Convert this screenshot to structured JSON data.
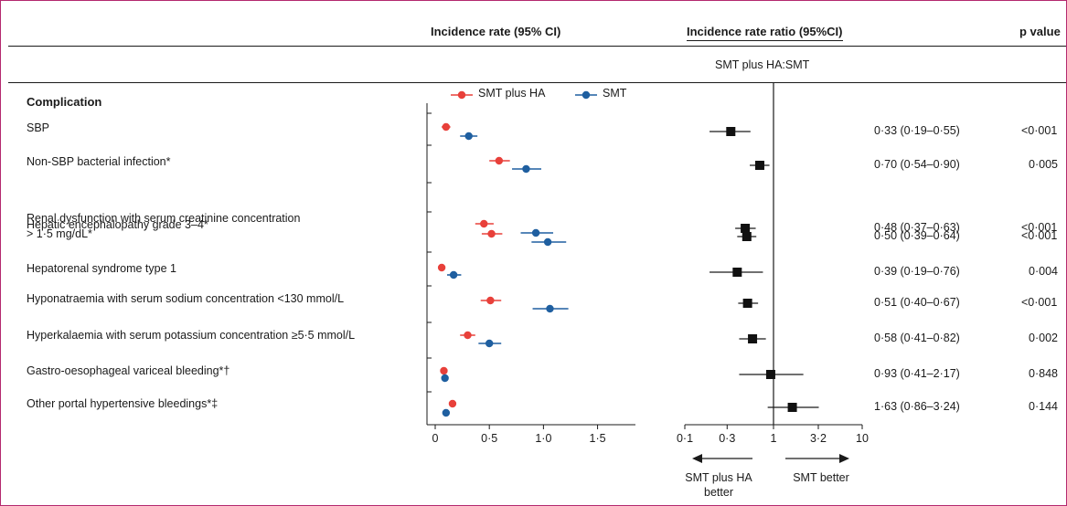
{
  "headers": {
    "incidence": "Incidence rate (95% CI)",
    "irr": "Incidence rate ratio (95%CI)",
    "irr_sub": "SMT plus HA:SMT",
    "p": "p value"
  },
  "column_label": "Complication",
  "legend": [
    {
      "label": "SMT plus HA",
      "color": "#e8403a"
    },
    {
      "label": "SMT",
      "color": "#1f5fa0"
    }
  ],
  "direction_labels": {
    "left": "SMT plus HA better",
    "right": "SMT better"
  },
  "chart_data": [
    {
      "type": "scatter",
      "title": "Incidence rate (95% CI)",
      "xlim": [
        0,
        1.85
      ],
      "xticks": [
        {
          "v": 0,
          "label": "0"
        },
        {
          "v": 0.5,
          "label": "0·5"
        },
        {
          "v": 1.0,
          "label": "1·0"
        },
        {
          "v": 1.5,
          "label": "1·5"
        }
      ],
      "series": [
        {
          "name": "SMT plus HA",
          "color": "#e8403a",
          "points": [
            {
              "row": "SBP",
              "value": 0.1,
              "lo": 0.06,
              "hi": 0.14
            },
            {
              "row": "Non-SBP bacterial infection*",
              "value": 0.59,
              "lo": 0.5,
              "hi": 0.69
            },
            {
              "row": "Hepatic encephalopathy grade 3–4*",
              "value": 0.45,
              "lo": 0.37,
              "hi": 0.54
            },
            {
              "row": "Renal dysfunction with serum creatinine concentration > 1·5 mg/dL*",
              "value": 0.52,
              "lo": 0.43,
              "hi": 0.62
            },
            {
              "row": "Hepatorenal syndrome type 1",
              "value": 0.06,
              "lo": 0.03,
              "hi": 0.09
            },
            {
              "row": "Hyponatraemia with serum sodium concentration <130 mmol/L",
              "value": 0.51,
              "lo": 0.42,
              "hi": 0.61
            },
            {
              "row": "Hyperkalaemia with serum potassium concentration ≥5·5 mmol/L",
              "value": 0.3,
              "lo": 0.23,
              "hi": 0.37
            },
            {
              "row": "Gastro-oesophageal variceal bleeding*†",
              "value": 0.08,
              "lo": 0.05,
              "hi": 0.11
            },
            {
              "row": "Other portal hypertensive bleedings*‡",
              "value": 0.16,
              "lo": 0.13,
              "hi": 0.19
            }
          ]
        },
        {
          "name": "SMT",
          "color": "#1f5fa0",
          "points": [
            {
              "row": "SBP",
              "value": 0.31,
              "lo": 0.23,
              "hi": 0.39
            },
            {
              "row": "Non-SBP bacterial infection*",
              "value": 0.84,
              "lo": 0.71,
              "hi": 0.98
            },
            {
              "row": "Hepatic encephalopathy grade 3–4*",
              "value": 0.93,
              "lo": 0.79,
              "hi": 1.09
            },
            {
              "row": "Renal dysfunction with serum creatinine concentration > 1·5 mg/dL*",
              "value": 1.04,
              "lo": 0.89,
              "hi": 1.21
            },
            {
              "row": "Hepatorenal syndrome type 1",
              "value": 0.17,
              "lo": 0.11,
              "hi": 0.24
            },
            {
              "row": "Hyponatraemia with serum sodium concentration <130 mmol/L",
              "value": 1.06,
              "lo": 0.9,
              "hi": 1.23
            },
            {
              "row": "Hyperkalaemia with serum potassium concentration ≥5·5 mmol/L",
              "value": 0.5,
              "lo": 0.4,
              "hi": 0.61
            },
            {
              "row": "Gastro-oesophageal variceal bleeding*†",
              "value": 0.09,
              "lo": 0.06,
              "hi": 0.12
            },
            {
              "row": "Other portal hypertensive bleedings*‡",
              "value": 0.1,
              "lo": 0.07,
              "hi": 0.13
            }
          ]
        }
      ]
    },
    {
      "type": "scatter",
      "title": "Incidence rate ratio (95%CI)",
      "subtitle": "SMT plus HA:SMT",
      "x_scale": "log",
      "xlim": [
        0.1,
        10
      ],
      "reference_line": 1,
      "xticks": [
        {
          "v": 0.1,
          "label": "0·1"
        },
        {
          "v": 0.3,
          "label": "0·3"
        },
        {
          "v": 1,
          "label": "1"
        },
        {
          "v": 3.2,
          "label": "3·2"
        },
        {
          "v": 10,
          "label": "10"
        }
      ],
      "rows": [
        {
          "label": "SBP",
          "irr": 0.33,
          "lo": 0.19,
          "hi": 0.55,
          "ci_text": "0·33 (0·19–0·55)",
          "p": "<0·001"
        },
        {
          "label": "Non-SBP bacterial infection*",
          "irr": 0.7,
          "lo": 0.54,
          "hi": 0.9,
          "ci_text": "0·70 (0·54–0·90)",
          "p": "0·005"
        },
        {
          "label": "Hepatic encephalopathy grade 3–4*",
          "irr": 0.48,
          "lo": 0.37,
          "hi": 0.63,
          "ci_text": "0·48 (0·37–0·63)",
          "p": "<0·001"
        },
        {
          "label": "Renal dysfunction with serum creatinine concentration > 1·5 mg/dL*",
          "irr": 0.5,
          "lo": 0.39,
          "hi": 0.64,
          "ci_text": "0·50 (0·39–0·64)",
          "p": "<0·001"
        },
        {
          "label": "Hepatorenal syndrome type 1",
          "irr": 0.39,
          "lo": 0.19,
          "hi": 0.76,
          "ci_text": "0·39 (0·19–0·76)",
          "p": "0·004"
        },
        {
          "label": "Hyponatraemia with serum sodium concentration <130 mmol/L",
          "irr": 0.51,
          "lo": 0.4,
          "hi": 0.67,
          "ci_text": "0·51 (0·40–0·67)",
          "p": "<0·001"
        },
        {
          "label": "Hyperkalaemia with serum potassium concentration ≥5·5 mmol/L",
          "irr": 0.58,
          "lo": 0.41,
          "hi": 0.82,
          "ci_text": "0·58 (0·41–0·82)",
          "p": "0·002"
        },
        {
          "label": "Gastro-oesophageal variceal bleeding*†",
          "irr": 0.93,
          "lo": 0.41,
          "hi": 2.17,
          "ci_text": "0·93 (0·41–2·17)",
          "p": "0·848"
        },
        {
          "label": "Other portal hypertensive bleedings*‡",
          "irr": 1.63,
          "lo": 0.86,
          "hi": 3.24,
          "ci_text": "1·63 (0·86–3·24)",
          "p": "0·144"
        }
      ]
    }
  ],
  "row_labels": [
    "SBP",
    "Non-SBP bacterial infection*",
    "Hepatic encephalopathy grade 3–4*",
    "Renal dysfunction with serum creatinine concentration\n> 1·5 mg/dL*",
    "Hepatorenal syndrome type 1",
    "Hyponatraemia with serum sodium concentration <130 mmol/L",
    "Hyperkalaemia with serum potassium concentration ≥5·5 mmol/L",
    "Gastro-oesophageal variceal bleeding*†",
    "Other portal hypertensive bleedings*‡"
  ]
}
